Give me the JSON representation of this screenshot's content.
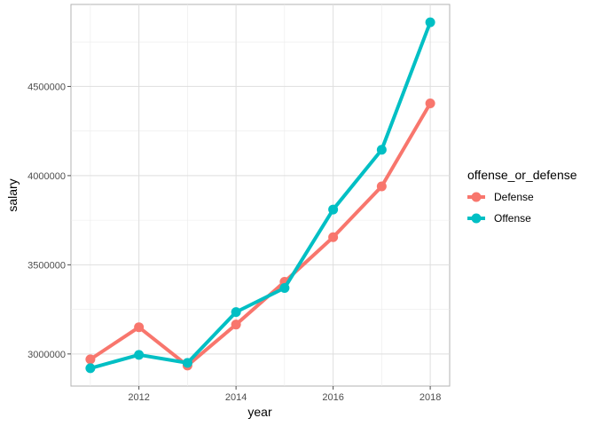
{
  "chart_data": {
    "type": "line",
    "xlabel": "year",
    "ylabel": "salary",
    "x": [
      2011,
      2012,
      2013,
      2014,
      2015,
      2016,
      2017,
      2018
    ],
    "xticks": [
      2012,
      2014,
      2016,
      2018
    ],
    "yticks": [
      3000000,
      3500000,
      4000000,
      4500000
    ],
    "xlim": [
      2010.6,
      2018.4
    ],
    "ylim": [
      2820000,
      4960000
    ],
    "grid": true,
    "legend": {
      "title": "offense_or_defense",
      "placement": "right"
    },
    "series": [
      {
        "name": "Defense",
        "color": "#F8766D",
        "values": [
          2970000,
          3150000,
          2935000,
          3165000,
          3405000,
          3655000,
          3940000,
          4405000
        ]
      },
      {
        "name": "Offense",
        "color": "#00BFC4",
        "values": [
          2920000,
          2995000,
          2950000,
          3235000,
          3370000,
          3810000,
          4145000,
          4860000
        ]
      }
    ]
  }
}
